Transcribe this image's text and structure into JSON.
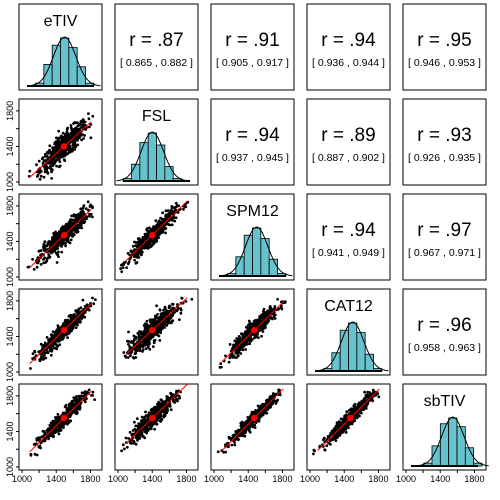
{
  "chart_data": {
    "type": "scatter",
    "variables": [
      "eTIV",
      "FSL",
      "SPM12",
      "CAT12",
      "sbTIV"
    ],
    "axis_range": [
      1000,
      1900
    ],
    "ticks": [
      1000,
      1400,
      1800
    ],
    "tick_labels": [
      "1000",
      "1400",
      "1800"
    ],
    "minor_ticks": [
      1200,
      1600
    ],
    "correlations": [
      {
        "row": "eTIV",
        "col": "FSL",
        "label": "r = .87",
        "ci": "[ 0.865 , 0.882 ]"
      },
      {
        "row": "eTIV",
        "col": "SPM12",
        "label": "r = .91",
        "ci": "[ 0.905 , 0.917 ]"
      },
      {
        "row": "eTIV",
        "col": "CAT12",
        "label": "r = .94",
        "ci": "[ 0.936 , 0.944 ]"
      },
      {
        "row": "eTIV",
        "col": "sbTIV",
        "label": "r = .95",
        "ci": "[ 0.946 , 0.953 ]"
      },
      {
        "row": "FSL",
        "col": "SPM12",
        "label": "r = .94",
        "ci": "[ 0.937 , 0.945 ]"
      },
      {
        "row": "FSL",
        "col": "CAT12",
        "label": "r = .89",
        "ci": "[ 0.887 , 0.902 ]"
      },
      {
        "row": "FSL",
        "col": "sbTIV",
        "label": "r = .93",
        "ci": "[ 0.926 , 0.935 ]"
      },
      {
        "row": "SPM12",
        "col": "CAT12",
        "label": "r = .94",
        "ci": "[ 0.941 , 0.949 ]"
      },
      {
        "row": "SPM12",
        "col": "sbTIV",
        "label": "r = .97",
        "ci": "[ 0.967 , 0.971 ]"
      },
      {
        "row": "CAT12",
        "col": "sbTIV",
        "label": "r = .96",
        "ci": "[ 0.958 , 0.963 ]"
      }
    ],
    "histograms": {
      "eTIV": {
        "bin_edges": [
          1150,
          1250,
          1350,
          1450,
          1550,
          1650,
          1750,
          1850
        ],
        "density": [
          0.06,
          0.45,
          0.85,
          1.0,
          0.8,
          0.4,
          0.06
        ]
      },
      "FSL": {
        "bin_edges": [
          1050,
          1150,
          1250,
          1350,
          1450,
          1550,
          1650,
          1750
        ],
        "density": [
          0.05,
          0.35,
          0.8,
          1.0,
          0.75,
          0.3,
          0.05
        ]
      },
      "SPM12": {
        "bin_edges": [
          1150,
          1250,
          1350,
          1450,
          1550,
          1650,
          1750,
          1850
        ],
        "density": [
          0.05,
          0.4,
          0.85,
          1.0,
          0.78,
          0.35,
          0.05
        ]
      },
      "CAT12": {
        "bin_edges": [
          1150,
          1250,
          1350,
          1450,
          1550,
          1650,
          1750,
          1850
        ],
        "density": [
          0.05,
          0.38,
          0.85,
          1.0,
          0.8,
          0.35,
          0.05
        ]
      },
      "sbTIV": {
        "bin_edges": [
          1200,
          1300,
          1400,
          1500,
          1600,
          1700,
          1800,
          1900
        ],
        "density": [
          0.06,
          0.42,
          0.88,
          1.0,
          0.82,
          0.38,
          0.06
        ]
      }
    },
    "scatter_centers": {
      "eTIV": 1490,
      "FSL": 1400,
      "SPM12": 1470,
      "CAT12": 1470,
      "sbTIV": 1550
    },
    "grid": false,
    "colors": {
      "points": "#000000",
      "mean_point": "#ff0000",
      "fit_line": "#ff0000",
      "histogram_fill": "#66c2cc",
      "density_curve": "#000000"
    }
  }
}
